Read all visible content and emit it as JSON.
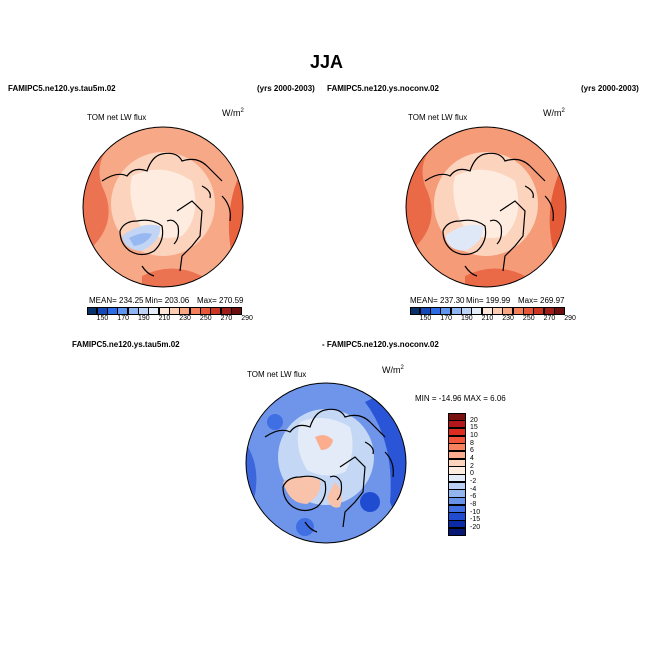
{
  "title": "JJA",
  "panel_left": {
    "case": "FAMIPC5.ne120.ys.tau5m.02",
    "years": "(yrs 2000-2003)",
    "variable": "TOM net LW flux",
    "units_base": "W/m",
    "units_exp": "2",
    "stats": {
      "mean": "MEAN= 234.25",
      "min": "Min= 203.06",
      "max": "Max= 270.59"
    }
  },
  "panel_right": {
    "case": "FAMIPC5.ne120.ys.noconv.02",
    "years": "(yrs 2000-2003)",
    "variable": "TOM net LW flux",
    "units_base": "W/m",
    "units_exp": "2",
    "stats": {
      "mean": "MEAN= 237.30",
      "min": "Min= 199.99",
      "max": "Max= 269.97"
    }
  },
  "panel_diff": {
    "case_a": "FAMIPC5.ne120.ys.tau5m.02",
    "case_b": "- FAMIPC5.ne120.ys.noconv.02",
    "variable": "TOM net LW flux",
    "units_base": "W/m",
    "units_exp": "2",
    "minmax": "MIN = -14.96 MAX =   6.06"
  },
  "colorbar_abs": {
    "colors": [
      "#08306b",
      "#1448b8",
      "#2b6be6",
      "#5e95f0",
      "#8db5f2",
      "#bcd3f5",
      "#e4ecf7",
      "#fde6d8",
      "#fdcbb0",
      "#f9a783",
      "#f47f59",
      "#e9573a",
      "#cc3522",
      "#a01d18",
      "#6e0f0f"
    ],
    "ticks": [
      "150",
      "170",
      "190",
      "210",
      "230",
      "250",
      "270",
      "290"
    ]
  },
  "colorbar_diff": {
    "colors": [
      "#7a0f0f",
      "#b3171b",
      "#dc2d20",
      "#f2553a",
      "#f8825e",
      "#fbad8d",
      "#fcd3bd",
      "#fdecdf",
      "#e2ebf7",
      "#bcd2f4",
      "#92b5ef",
      "#6993e9",
      "#3f6fe3",
      "#1f4cd1",
      "#0a2aa6",
      "#061873"
    ],
    "ticks": [
      "20",
      "15",
      "10",
      "8",
      "6",
      "4",
      "2",
      "0",
      "-2",
      "-4",
      "-6",
      "-8",
      "-10",
      "-15",
      "-20"
    ]
  },
  "map_colors": {
    "ocean_left": "#f7a887",
    "ocean_right": "#f59b78",
    "band_light": "#fcd3bd",
    "arctic": "#fdecdf",
    "greenland": "#c3d5f5",
    "hot": "#ea6a47",
    "diff_base": "#6e95ea",
    "diff_light": "#c4d7f5",
    "diff_warm": "#f8c3aa",
    "diff_deep": "#2a55d6"
  }
}
